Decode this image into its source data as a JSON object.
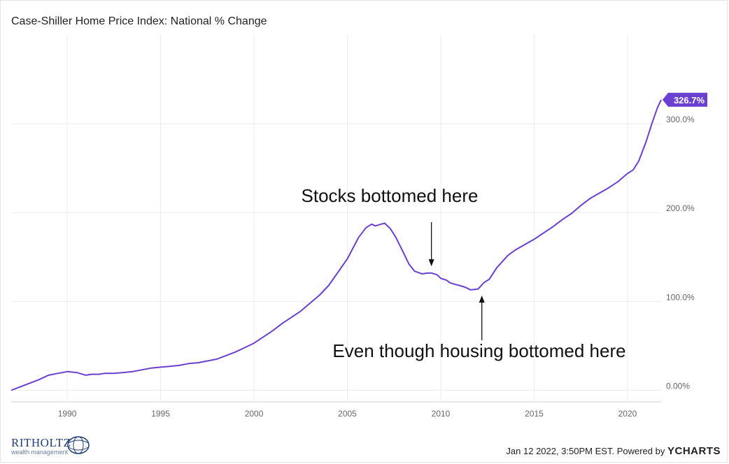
{
  "chart_data": {
    "type": "line",
    "title": "Case-Shiller Home Price Index: National % Change",
    "xlabel": "",
    "ylabel": "",
    "xlim": [
      1987.0,
      2021.8
    ],
    "ylim": [
      -13,
      400
    ],
    "x_ticks": [
      1990,
      1995,
      2000,
      2005,
      2010,
      2015,
      2020
    ],
    "x_tick_labels": [
      "1990",
      "1995",
      "2000",
      "2005",
      "2010",
      "2015",
      "2020"
    ],
    "y_ticks": [
      0,
      100,
      200,
      300
    ],
    "y_tick_labels": [
      "0.00%",
      "100.0%",
      "200.0%",
      "300.0%"
    ],
    "grid": true,
    "line_color": "#6b3fd0",
    "last_value_label": "326.7%",
    "series": [
      {
        "x": [
          1987.0,
          1987.5,
          1988.0,
          1988.5,
          1989.0,
          1989.5,
          1990.0,
          1990.5,
          1991.0,
          1991.3,
          1991.7,
          1992.0,
          1992.5,
          1993.0,
          1993.5,
          1994.0,
          1994.5,
          1995.0,
          1995.5,
          1996.0,
          1996.5,
          1997.0,
          1997.5,
          1998.0,
          1998.5,
          1999.0,
          1999.5,
          2000.0,
          2000.5,
          2001.0,
          2001.5,
          2002.0,
          2002.5,
          2003.0,
          2003.5,
          2004.0,
          2004.5,
          2005.0,
          2005.3,
          2005.6,
          2006.0,
          2006.3,
          2006.5,
          2006.8,
          2007.0,
          2007.3,
          2007.6,
          2008.0,
          2008.3,
          2008.6,
          2009.0,
          2009.3,
          2009.5,
          2009.8,
          2010.0,
          2010.3,
          2010.5,
          2010.8,
          2011.0,
          2011.3,
          2011.6,
          2012.0,
          2012.3,
          2012.6,
          2013.0,
          2013.3,
          2013.6,
          2014.0,
          2014.5,
          2015.0,
          2015.5,
          2016.0,
          2016.5,
          2017.0,
          2017.5,
          2018.0,
          2018.5,
          2019.0,
          2019.5,
          2020.0,
          2020.3,
          2020.6,
          2021.0,
          2021.3,
          2021.6,
          2021.8
        ],
        "y": [
          0,
          4,
          8,
          12,
          17,
          19,
          21,
          20,
          17,
          18,
          18,
          19,
          19,
          20,
          21,
          23,
          25,
          26,
          27,
          28,
          30,
          31,
          33,
          35,
          39,
          43,
          48,
          53,
          60,
          67,
          75,
          82,
          89,
          98,
          107,
          118,
          133,
          148,
          160,
          172,
          183,
          187,
          185,
          187,
          188,
          182,
          172,
          155,
          142,
          134,
          131,
          132,
          132,
          130,
          126,
          124,
          121,
          119,
          118,
          116,
          113,
          114,
          121,
          125,
          138,
          145,
          152,
          158,
          164,
          170,
          177,
          184,
          192,
          199,
          208,
          216,
          222,
          228,
          235,
          244,
          248,
          258,
          280,
          300,
          318,
          327
        ]
      }
    ],
    "annotations": [
      {
        "text": "Stocks bottomed here",
        "x": 2009.5,
        "y": 131,
        "arrow": "down"
      },
      {
        "text": "Even though housing bottomed here",
        "x": 2012.2,
        "y": 113,
        "arrow": "up"
      }
    ]
  },
  "logo": {
    "name": "RITHOLTZ",
    "sub": "wealth management"
  },
  "footer": {
    "timestamp": "Jan 12 2022, 3:50PM EST.",
    "powered": "Powered by",
    "brand": "YCHARTS"
  }
}
